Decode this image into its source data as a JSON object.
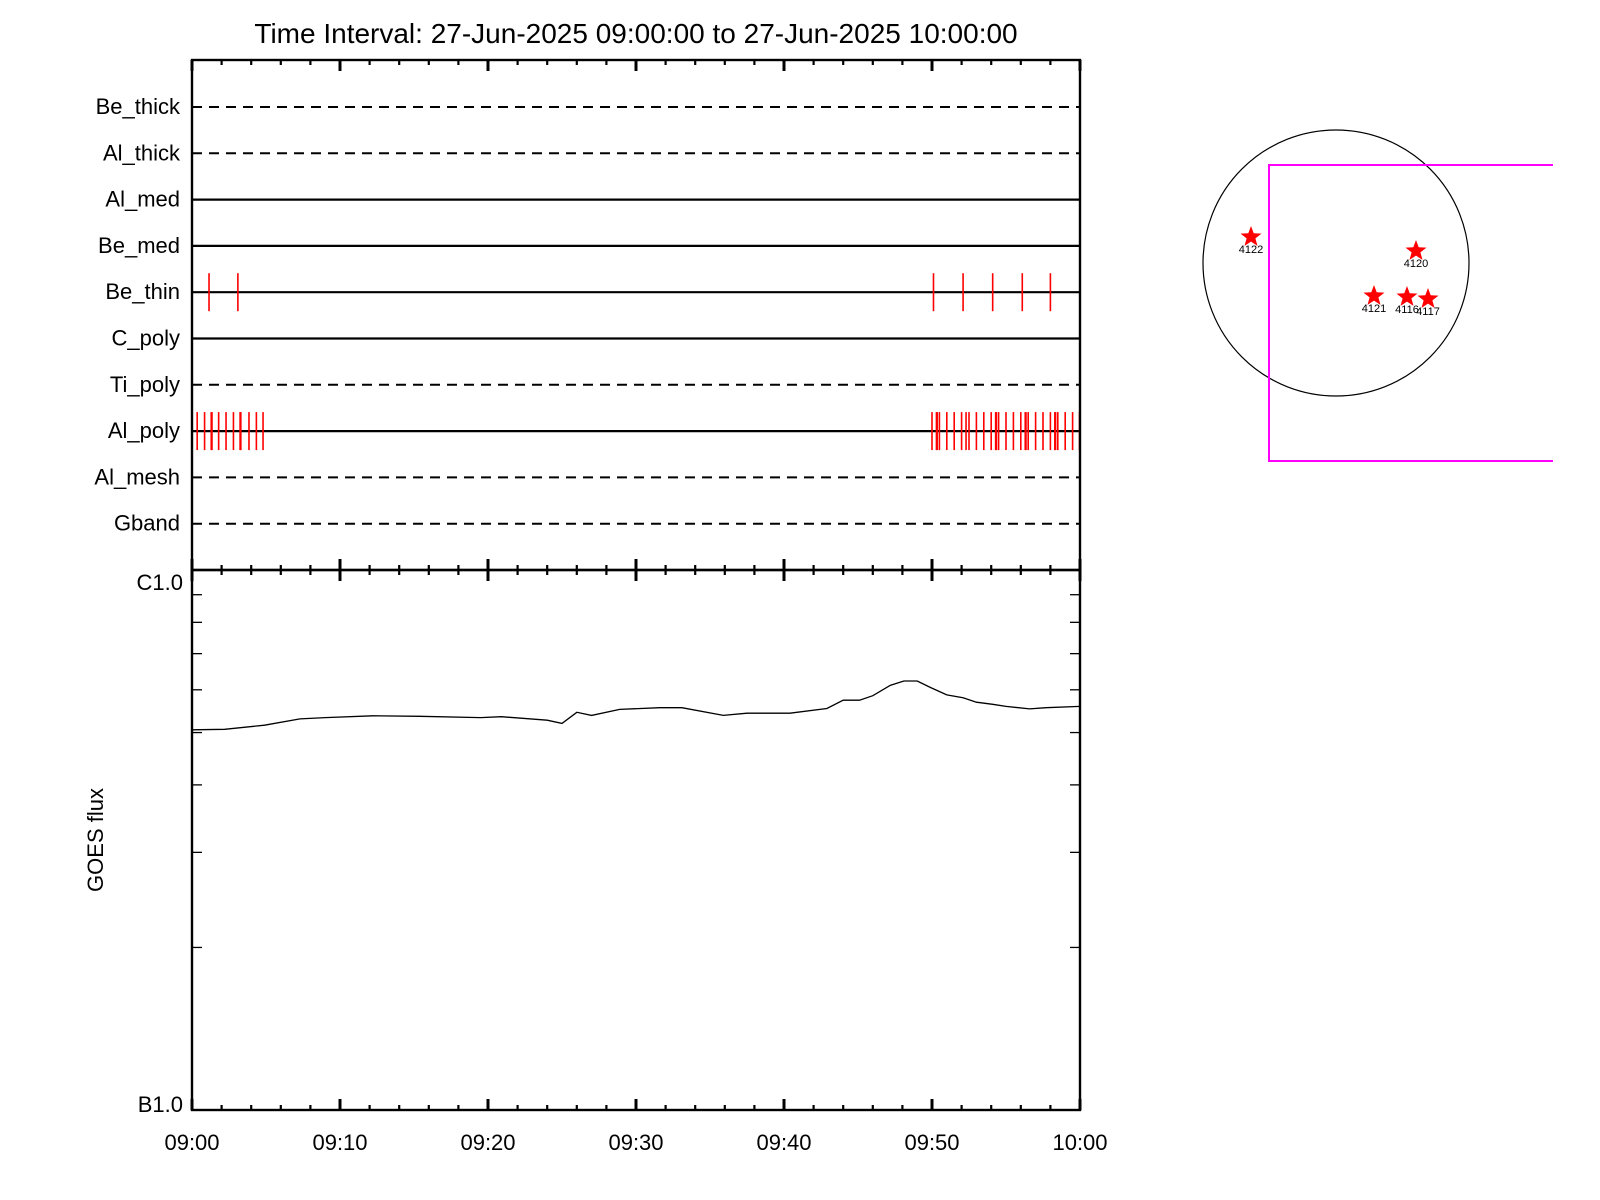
{
  "chart_data": [
    {
      "type": "timeline",
      "title": "Time Interval: 27-Jun-2025 09:00:00 to 27-Jun-2025 10:00:00",
      "xlim": [
        "09:00:00",
        "10:00:00"
      ],
      "x_tick_labels": [
        "09:00",
        "09:10",
        "09:20",
        "09:30",
        "09:40",
        "09:50",
        "10:00"
      ],
      "exposure_color": "#ff0000",
      "rows": [
        {
          "name": "Be_thick",
          "style": "dashed",
          "times": []
        },
        {
          "name": "Al_thick",
          "style": "dashed",
          "times": []
        },
        {
          "name": "Al_med",
          "style": "solid",
          "times": []
        },
        {
          "name": "Be_med",
          "style": "solid",
          "times": []
        },
        {
          "name": "Be_thin",
          "style": "solid",
          "times": [
            "09:01:09",
            "09:03:06",
            "09:50:06",
            "09:52:06",
            "09:54:06",
            "09:56:06",
            "09:58:00"
          ]
        },
        {
          "name": "C_poly",
          "style": "solid",
          "times": []
        },
        {
          "name": "Ti_poly",
          "style": "dashed",
          "times": []
        },
        {
          "name": "Al_poly",
          "style": "solid",
          "times": [
            "09:00:21",
            "09:00:51",
            "09:01:18",
            "09:01:21",
            "09:01:48",
            "09:02:18",
            "09:02:48",
            "09:03:15",
            "09:03:18",
            "09:03:51",
            "09:04:21",
            "09:04:48",
            "09:50:00",
            "09:50:18",
            "09:50:21",
            "09:50:30",
            "09:51:00",
            "09:51:30",
            "09:52:00",
            "09:52:18",
            "09:52:30",
            "09:53:00",
            "09:53:30",
            "09:54:00",
            "09:54:18",
            "09:54:21",
            "09:54:30",
            "09:55:00",
            "09:55:30",
            "09:56:00",
            "09:56:18",
            "09:56:21",
            "09:56:30",
            "09:57:00",
            "09:57:30",
            "09:58:00",
            "09:58:18",
            "09:58:21",
            "09:58:30",
            "09:59:00",
            "09:59:30",
            "09:59:58"
          ]
        },
        {
          "name": "Al_mesh",
          "style": "dashed",
          "times": []
        },
        {
          "name": "Gband",
          "style": "dashed",
          "times": []
        }
      ]
    },
    {
      "type": "line",
      "ylabel": "GOES flux",
      "yscale": "log",
      "ylim": [
        1e-07,
        1e-06
      ],
      "y_tick_labels": [
        "B1.0",
        "C1.0"
      ],
      "xlim": [
        "09:00:00",
        "10:00:00"
      ],
      "x_tick_labels": [
        "09:00",
        "09:10",
        "09:20",
        "09:30",
        "09:40",
        "09:50",
        "10:00"
      ],
      "series": [
        {
          "color": "#000000",
          "points": [
            [
              "09:00:00",
              5.06e-07
            ],
            [
              "09:02:12",
              5.07e-07
            ],
            [
              "09:04:54",
              5.16e-07
            ],
            [
              "09:07:18",
              5.3e-07
            ],
            [
              "09:09:00",
              5.33e-07
            ],
            [
              "09:12:12",
              5.37e-07
            ],
            [
              "09:15:24",
              5.36e-07
            ],
            [
              "09:19:30",
              5.33e-07
            ],
            [
              "09:20:54",
              5.35e-07
            ],
            [
              "09:24:00",
              5.27e-07
            ],
            [
              "09:25:00",
              5.2e-07
            ],
            [
              "09:26:00",
              5.45e-07
            ],
            [
              "09:27:00",
              5.38e-07
            ],
            [
              "09:28:54",
              5.52e-07
            ],
            [
              "09:31:36",
              5.56e-07
            ],
            [
              "09:33:06",
              5.56e-07
            ],
            [
              "09:35:54",
              5.38e-07
            ],
            [
              "09:37:30",
              5.43e-07
            ],
            [
              "09:40:24",
              5.43e-07
            ],
            [
              "09:42:54",
              5.54e-07
            ],
            [
              "09:44:00",
              5.74e-07
            ],
            [
              "09:45:06",
              5.74e-07
            ],
            [
              "09:46:00",
              5.85e-07
            ],
            [
              "09:47:12",
              6.12e-07
            ],
            [
              "09:48:06",
              6.23e-07
            ],
            [
              "09:49:00",
              6.23e-07
            ],
            [
              "09:49:54",
              6.06e-07
            ],
            [
              "09:51:00",
              5.87e-07
            ],
            [
              "09:52:06",
              5.8e-07
            ],
            [
              "09:53:00",
              5.69e-07
            ],
            [
              "09:54:06",
              5.64e-07
            ],
            [
              "09:55:00",
              5.59e-07
            ],
            [
              "09:56:36",
              5.53e-07
            ],
            [
              "09:57:42",
              5.56e-07
            ],
            [
              "10:00:00",
              5.59e-07
            ]
          ]
        }
      ]
    }
  ],
  "sun_map": {
    "disk_color": "#000000",
    "fov_color": "#ff00ff",
    "marker_color": "#ff0000",
    "active_regions": [
      "4122",
      "4120",
      "4121",
      "4116",
      "4117"
    ]
  }
}
